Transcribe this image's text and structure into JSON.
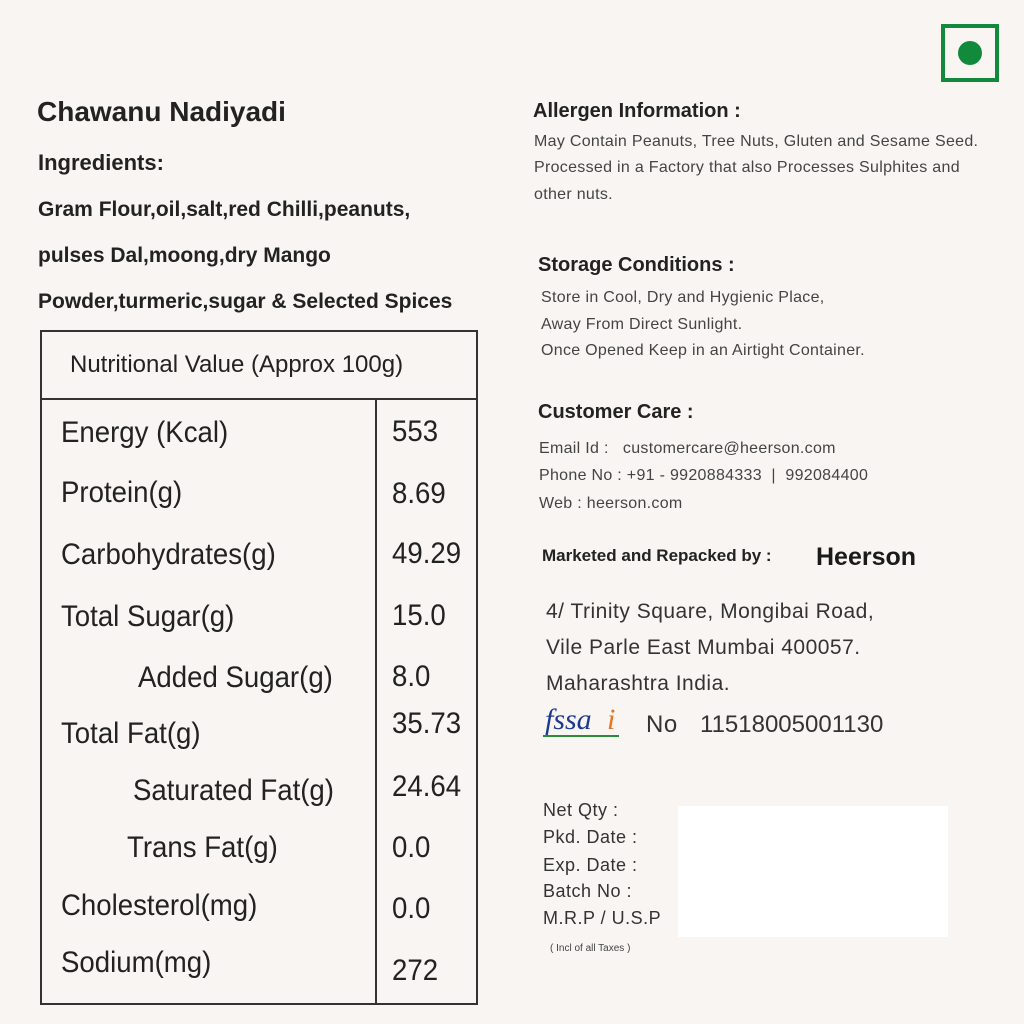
{
  "product_name": "Chawanu Nadiyadi",
  "veg_symbol": {
    "icon": "veg-symbol-icon",
    "color": "#118a3b"
  },
  "ingredients": {
    "heading": "Ingredients:",
    "lines": [
      "Gram Flour,oil,salt,red Chilli,peanuts,",
      "pulses Dal,moong,dry Mango",
      "Powder,turmeric,sugar & Selected Spices"
    ]
  },
  "nutrition": {
    "heading": "Nutritional Value (Approx 100g)",
    "rows": [
      {
        "label": "Energy (Kcal)",
        "value": "553"
      },
      {
        "label": "Protein(g)",
        "value": "8.69"
      },
      {
        "label": "Carbohydrates(g)",
        "value": "49.29"
      },
      {
        "label": "Total Sugar(g)",
        "value": "15.0"
      },
      {
        "label": "Added Sugar(g)",
        "value": "8.0"
      },
      {
        "label": "Total Fat(g)",
        "value": "35.73"
      },
      {
        "label": "Saturated Fat(g)",
        "value": "24.64"
      },
      {
        "label": "Trans Fat(g)",
        "value": "0.0"
      },
      {
        "label": "Cholesterol(mg)",
        "value": "0.0"
      },
      {
        "label": "Sodium(mg)",
        "value": "272"
      }
    ]
  },
  "allergen": {
    "heading": "Allergen Information :",
    "lines": [
      "May Contain Peanuts, Tree Nuts, Gluten and Sesame Seed.",
      "Processed in a Factory that also Processes Sulphites and",
      "other nuts."
    ]
  },
  "storage": {
    "heading": "Storage Conditions :",
    "lines": [
      "Store in Cool, Dry and Hygienic Place,",
      "Away From Direct Sunlight.",
      "Once Opened Keep in an Airtight Container."
    ]
  },
  "customer_care": {
    "heading": "Customer Care :",
    "lines": [
      "Email Id :   customercare@heerson.com",
      "Phone No : +91 - 9920884333  |  992084400",
      "Web : heerson.com"
    ]
  },
  "marketer": {
    "label": "Marketed and Repacked by :",
    "brand": "Heerson",
    "address": [
      "4/ Trinity Square, Mongibai Road,",
      "Vile Parle East Mumbai 400057.",
      "Maharashtra India."
    ]
  },
  "fssai": {
    "logo_text": "fssai",
    "no_label": "No",
    "number": "11518005001130"
  },
  "pack_fields": {
    "labels": [
      "Net Qty :",
      "Pkd. Date :",
      "Exp. Date :",
      "Batch No :",
      "M.R.P / U.S.P"
    ],
    "note": "( Incl of all Taxes )"
  }
}
